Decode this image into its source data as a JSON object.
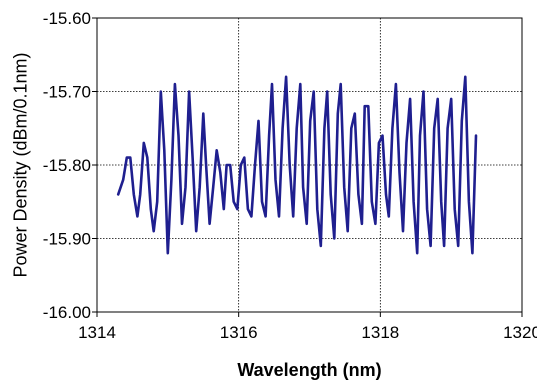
{
  "chart_data": {
    "type": "line",
    "title": "",
    "xlabel": "Wavelength (nm)",
    "ylabel": "Power Density (dBm/0.1nm)",
    "xlim": [
      1314,
      1320
    ],
    "ylim": [
      -16.0,
      -15.6
    ],
    "x_ticks": [
      1314,
      1316,
      1318,
      1320
    ],
    "y_ticks": [
      -15.6,
      -15.7,
      -15.8,
      -15.9,
      -16.0
    ],
    "x_tick_labels": [
      "1314",
      "1316",
      "1318",
      "1320"
    ],
    "y_tick_labels": [
      "-15.60",
      "-15.70",
      "-15.80",
      "-15.90",
      "-16.00"
    ],
    "grid": true,
    "series": [
      {
        "color": "#1f1f8f",
        "x": [
          1314.3,
          1314.37,
          1314.42,
          1314.47,
          1314.52,
          1314.57,
          1314.61,
          1314.66,
          1314.71,
          1314.76,
          1314.8,
          1314.85,
          1314.9,
          1314.95,
          1315.0,
          1315.05,
          1315.1,
          1315.15,
          1315.2,
          1315.25,
          1315.3,
          1315.35,
          1315.4,
          1315.45,
          1315.5,
          1315.54,
          1315.59,
          1315.64,
          1315.69,
          1315.74,
          1315.79,
          1315.83,
          1315.88,
          1315.93,
          1315.98,
          1316.03,
          1316.08,
          1316.13,
          1316.18,
          1316.23,
          1316.28,
          1316.33,
          1316.38,
          1316.43,
          1316.47,
          1316.52,
          1316.57,
          1316.62,
          1316.67,
          1316.72,
          1316.77,
          1316.82,
          1316.87,
          1316.91,
          1316.96,
          1317.01,
          1317.06,
          1317.11,
          1317.16,
          1317.21,
          1317.25,
          1317.3,
          1317.35,
          1317.4,
          1317.44,
          1317.49,
          1317.54,
          1317.59,
          1317.64,
          1317.69,
          1317.74,
          1317.78,
          1317.83,
          1317.88,
          1317.93,
          1317.98,
          1318.03,
          1318.08,
          1318.12,
          1318.17,
          1318.22,
          1318.27,
          1318.32,
          1318.37,
          1318.42,
          1318.47,
          1318.52,
          1318.56,
          1318.61,
          1318.66,
          1318.71,
          1318.76,
          1318.81,
          1318.86,
          1318.9,
          1318.95,
          1319.0,
          1319.05,
          1319.1,
          1319.15,
          1319.2,
          1319.25,
          1319.3,
          1319.35
        ],
        "y": [
          -15.84,
          -15.82,
          -15.79,
          -15.79,
          -15.84,
          -15.87,
          -15.84,
          -15.77,
          -15.79,
          -15.86,
          -15.89,
          -15.85,
          -15.7,
          -15.78,
          -15.92,
          -15.82,
          -15.69,
          -15.76,
          -15.88,
          -15.83,
          -15.7,
          -15.79,
          -15.89,
          -15.83,
          -15.73,
          -15.8,
          -15.88,
          -15.83,
          -15.78,
          -15.81,
          -15.86,
          -15.8,
          -15.8,
          -15.85,
          -15.86,
          -15.8,
          -15.79,
          -15.86,
          -15.87,
          -15.8,
          -15.74,
          -15.85,
          -15.87,
          -15.76,
          -15.69,
          -15.82,
          -15.87,
          -15.75,
          -15.68,
          -15.8,
          -15.87,
          -15.75,
          -15.69,
          -15.83,
          -15.88,
          -15.74,
          -15.7,
          -15.86,
          -15.91,
          -15.75,
          -15.7,
          -15.84,
          -15.9,
          -15.73,
          -15.69,
          -15.83,
          -15.89,
          -15.75,
          -15.73,
          -15.84,
          -15.88,
          -15.72,
          -15.72,
          -15.85,
          -15.88,
          -15.77,
          -15.76,
          -15.84,
          -15.87,
          -15.75,
          -15.69,
          -15.81,
          -15.89,
          -15.77,
          -15.71,
          -15.85,
          -15.92,
          -15.76,
          -15.7,
          -15.86,
          -15.91,
          -15.75,
          -15.71,
          -15.85,
          -15.91,
          -15.75,
          -15.71,
          -15.86,
          -15.91,
          -15.74,
          -15.68,
          -15.85,
          -15.92,
          -15.76
        ]
      }
    ]
  }
}
